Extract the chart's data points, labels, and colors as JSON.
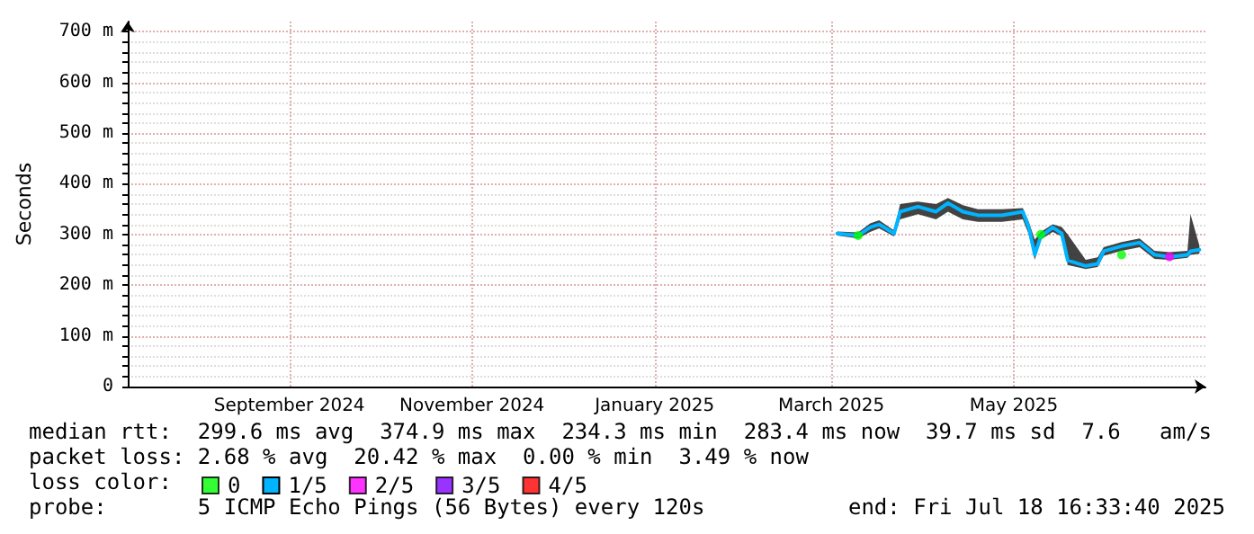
{
  "chart_data": {
    "type": "line",
    "ylabel": "Seconds",
    "xlim": [
      "2024-07-23",
      "2025-07-18"
    ],
    "xticks": [
      {
        "value": "2024-09-15",
        "label": "September 2024"
      },
      {
        "value": "2024-11-15",
        "label": "November 2024"
      },
      {
        "value": "2025-01-15",
        "label": "January 2025"
      },
      {
        "value": "2025-03-15",
        "label": "March 2025"
      },
      {
        "value": "2025-05-15",
        "label": "May 2025"
      }
    ],
    "ylim": [
      0,
      720
    ],
    "yticks": [
      0,
      {
        "value": 100,
        "label": "100 m"
      },
      {
        "value": 200,
        "label": "200 m"
      },
      {
        "value": 300,
        "label": "300 m"
      },
      {
        "value": 400,
        "label": "400 m"
      },
      {
        "value": 500,
        "label": "500 m"
      },
      {
        "value": 600,
        "label": "600 m"
      },
      {
        "value": 700,
        "label": "700 m"
      }
    ],
    "grid": true,
    "legend": "bottom",
    "legend_title": "loss color:",
    "line_style": "solid",
    "x": [
      "2025-03-17",
      "2025-03-24",
      "2025-03-28",
      "2025-03-31",
      "2025-04-05",
      "2025-04-07",
      "2025-04-13",
      "2025-04-19",
      "2025-04-23",
      "2025-04-28",
      "2025-05-03",
      "2025-05-11",
      "2025-05-18",
      "2025-05-20",
      "2025-05-22",
      "2025-05-24",
      "2025-05-28",
      "2025-05-31",
      "2025-06-02",
      "2025-06-08",
      "2025-06-12",
      "2025-06-14",
      "2025-06-20",
      "2025-06-26",
      "2025-07-01",
      "2025-07-06",
      "2025-07-12",
      "2025-07-13",
      "2025-07-16"
    ],
    "series": [
      {
        "name": "0",
        "type": "scatter",
        "color": "#00ff00",
        "values": [
          null,
          298,
          null,
          null,
          null,
          null,
          null,
          null,
          null,
          null,
          null,
          null,
          null,
          null,
          null,
          300,
          null,
          null,
          null,
          null,
          null,
          null,
          260,
          null,
          null,
          null,
          null,
          null,
          null
        ]
      },
      {
        "name": "1/5",
        "color": "#00b4ff",
        "values": [
          302,
          298,
          314,
          320,
          302,
          345,
          355,
          345,
          362,
          345,
          338,
          338,
          345,
          314,
          260,
          296,
          314,
          302,
          249,
          238,
          242,
          267,
          277,
          284,
          260,
          256,
          260,
          267,
          270
        ],
        "lower": [
          298,
          292,
          305,
          312,
          296,
          330,
          340,
          330,
          345,
          330,
          325,
          325,
          330,
          300,
          250,
          290,
          305,
          296,
          240,
          232,
          236,
          258,
          268,
          275,
          252,
          250,
          254,
          260,
          262
        ],
        "upper": [
          306,
          304,
          322,
          328,
          308,
          360,
          365,
          360,
          372,
          358,
          350,
          350,
          352,
          325,
          290,
          305,
          320,
          315,
          300,
          250,
          255,
          275,
          285,
          292,
          268,
          265,
          268,
          340,
          278
        ]
      },
      {
        "name": "2/5",
        "type": "scatter",
        "color": "#ff00ff",
        "values": [
          null,
          null,
          null,
          null,
          null,
          null,
          null,
          null,
          null,
          null,
          null,
          null,
          null,
          null,
          null,
          null,
          null,
          null,
          null,
          null,
          null,
          null,
          null,
          null,
          null,
          256,
          null,
          null,
          null
        ]
      },
      {
        "name": "3/5",
        "type": "scatter",
        "color": "#7f00ff",
        "values": [
          null,
          null,
          null,
          null,
          null,
          null,
          null,
          null,
          null,
          null,
          null,
          null,
          null,
          null,
          null,
          null,
          null,
          null,
          null,
          null,
          null,
          null,
          null,
          null,
          null,
          null,
          null,
          null,
          null
        ]
      },
      {
        "name": "4/5",
        "type": "scatter",
        "color": "#ff0000",
        "values": [
          null,
          null,
          null,
          null,
          null,
          null,
          null,
          null,
          null,
          null,
          null,
          null,
          null,
          null,
          null,
          null,
          null,
          null,
          null,
          null,
          null,
          null,
          null,
          null,
          null,
          null,
          null,
          null,
          null
        ]
      }
    ],
    "annotations": [
      "median rtt:  299.6 ms avg  374.9 ms max  234.3 ms min  283.4 ms now  39.7 ms sd  7.6   am/s",
      "packet loss: 2.68 % avg  20.42 % max  0.00 % min  3.49 % now",
      "probe:       5 ICMP Echo Pings (56 Bytes) every 120s",
      "end: Fri Jul 18 16:33:40 2025"
    ]
  }
}
